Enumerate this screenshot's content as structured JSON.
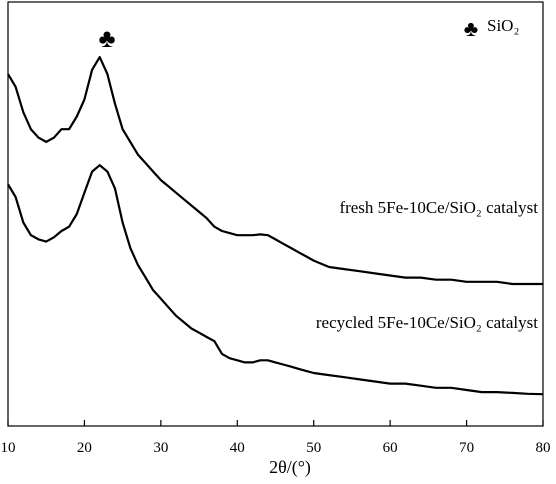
{
  "chart_data": {
    "type": "line",
    "title": "",
    "xlabel": "2θ/(°)",
    "ylabel": "",
    "xlim": [
      10,
      80
    ],
    "xticks": [
      10,
      20,
      30,
      40,
      50,
      60,
      70,
      80
    ],
    "y_ticks_shown": false,
    "grid": false,
    "legend": {
      "marker": "♣",
      "label": "SiO₂",
      "position": "top-right"
    },
    "peak_marker": {
      "symbol": "♣",
      "x": 22.6
    },
    "series": [
      {
        "name": "fresh 5Fe-10Ce/SiO₂ catalyst",
        "x": [
          10,
          11,
          12,
          13,
          14,
          15,
          16,
          17,
          18,
          19,
          20,
          21,
          22,
          23,
          24,
          25,
          26,
          27,
          28,
          29,
          30,
          31,
          32,
          33,
          34,
          35,
          36,
          37,
          38,
          39,
          40,
          41,
          42,
          43,
          44,
          45,
          46,
          47,
          48,
          49,
          50,
          52,
          54,
          56,
          58,
          60,
          62,
          64,
          66,
          68,
          70,
          72,
          74,
          76,
          78,
          80
        ],
        "y": [
          0.83,
          0.8,
          0.74,
          0.7,
          0.68,
          0.67,
          0.68,
          0.7,
          0.7,
          0.73,
          0.77,
          0.84,
          0.87,
          0.83,
          0.76,
          0.7,
          0.67,
          0.64,
          0.62,
          0.6,
          0.58,
          0.565,
          0.55,
          0.535,
          0.52,
          0.505,
          0.49,
          0.47,
          0.46,
          0.455,
          0.45,
          0.45,
          0.45,
          0.452,
          0.45,
          0.44,
          0.43,
          0.42,
          0.41,
          0.4,
          0.39,
          0.375,
          0.37,
          0.365,
          0.36,
          0.355,
          0.35,
          0.35,
          0.345,
          0.345,
          0.34,
          0.34,
          0.34,
          0.335,
          0.335,
          0.335
        ]
      },
      {
        "name": "recycled 5Fe-10Ce/SiO₂ catalyst",
        "x": [
          10,
          11,
          12,
          13,
          14,
          15,
          16,
          17,
          18,
          19,
          20,
          21,
          22,
          23,
          24,
          25,
          26,
          27,
          28,
          29,
          30,
          31,
          32,
          33,
          34,
          35,
          36,
          37,
          38,
          39,
          40,
          41,
          42,
          43,
          44,
          45,
          46,
          47,
          48,
          49,
          50,
          52,
          54,
          56,
          58,
          60,
          62,
          64,
          66,
          68,
          70,
          72,
          74,
          76,
          78,
          80
        ],
        "y": [
          0.57,
          0.54,
          0.48,
          0.45,
          0.44,
          0.435,
          0.445,
          0.46,
          0.47,
          0.5,
          0.55,
          0.6,
          0.615,
          0.6,
          0.56,
          0.48,
          0.42,
          0.38,
          0.35,
          0.32,
          0.3,
          0.28,
          0.26,
          0.245,
          0.23,
          0.22,
          0.21,
          0.2,
          0.17,
          0.16,
          0.155,
          0.15,
          0.15,
          0.155,
          0.155,
          0.15,
          0.145,
          0.14,
          0.135,
          0.13,
          0.125,
          0.12,
          0.115,
          0.11,
          0.105,
          0.1,
          0.1,
          0.095,
          0.09,
          0.09,
          0.085,
          0.08,
          0.08,
          0.078,
          0.076,
          0.075
        ]
      }
    ],
    "annotations": [
      {
        "text": "fresh 5Fe-10Ce/SiO₂ catalyst",
        "series_index": 0
      },
      {
        "text": "recycled 5Fe-10Ce/SiO₂ catalyst",
        "series_index": 1
      }
    ]
  }
}
